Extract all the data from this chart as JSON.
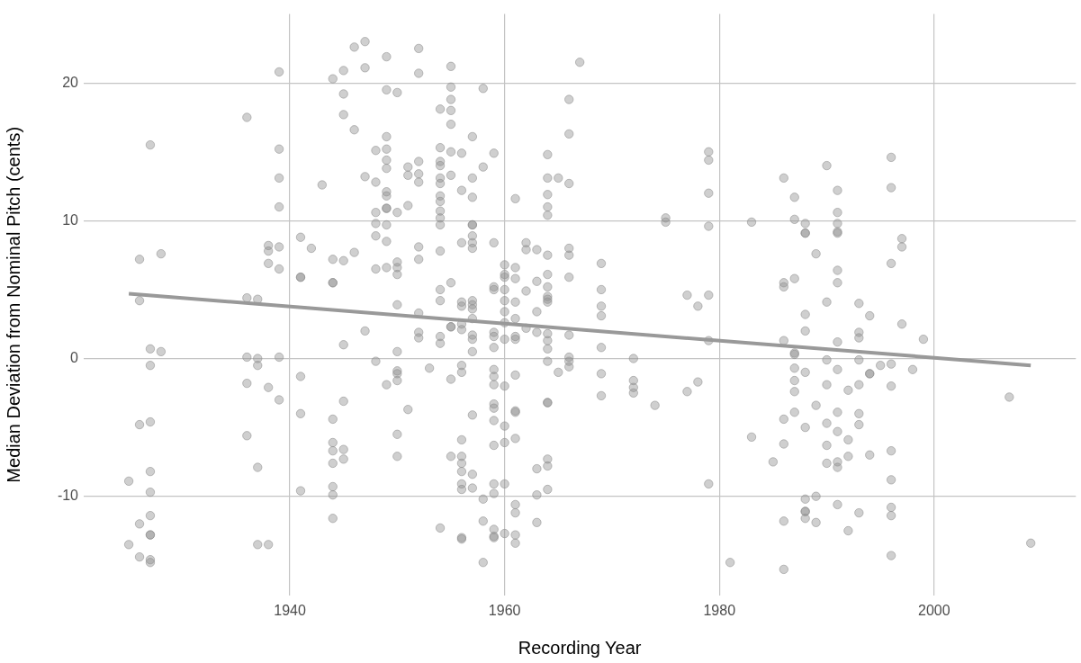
{
  "chart_data": {
    "type": "scatter",
    "xlabel": "Recording Year",
    "ylabel": "Median Deviation from Nominal Pitch (cents)",
    "xlim": [
      1920.8,
      2013.2
    ],
    "xticks": [
      1940,
      1960,
      1980,
      2000
    ],
    "ylim": [
      -17.2,
      25
    ],
    "yticks": [
      -10,
      0,
      10,
      20
    ],
    "grid": true,
    "marker": "circle",
    "series": [
      {
        "color": "#8c8c8c",
        "x": [
          1925,
          1925,
          1926,
          1926,
          1926,
          1926,
          1926,
          1927,
          1927,
          1927,
          1927,
          1927,
          1927,
          1927,
          1927,
          1927,
          1927,
          1927,
          1928,
          1928,
          1936,
          1936,
          1936,
          1936,
          1936,
          1937,
          1937,
          1937,
          1937,
          1937,
          1938,
          1938,
          1938,
          1938,
          1938,
          1939,
          1939,
          1939,
          1939,
          1939,
          1939,
          1939,
          1939,
          1941,
          1941,
          1941,
          1941,
          1941,
          1941,
          1942,
          1943,
          1944,
          1944,
          1944,
          1944,
          1944,
          1944,
          1944,
          1944,
          1944,
          1944,
          1944,
          1945,
          1945,
          1945,
          1945,
          1945,
          1945,
          1945,
          1945,
          1946,
          1946,
          1946,
          1947,
          1947,
          1947,
          1947,
          1948,
          1948,
          1948,
          1948,
          1948,
          1948,
          1948,
          1949,
          1949,
          1949,
          1949,
          1949,
          1949,
          1949,
          1949,
          1949,
          1949,
          1949,
          1949,
          1949,
          1949,
          1950,
          1950,
          1950,
          1950,
          1950,
          1950,
          1950,
          1950,
          1950,
          1950,
          1950,
          1950,
          1951,
          1951,
          1951,
          1951,
          1952,
          1952,
          1952,
          1952,
          1952,
          1952,
          1952,
          1952,
          1952,
          1952,
          1953,
          1954,
          1954,
          1954,
          1954,
          1954,
          1954,
          1954,
          1954,
          1954,
          1954,
          1954,
          1954,
          1954,
          1954,
          1954,
          1954,
          1954,
          1955,
          1955,
          1955,
          1955,
          1955,
          1955,
          1955,
          1955,
          1955,
          1955,
          1955,
          1955,
          1956,
          1956,
          1956,
          1956,
          1956,
          1956,
          1956,
          1956,
          1956,
          1956,
          1956,
          1956,
          1956,
          1956,
          1956,
          1956,
          1956,
          1957,
          1957,
          1957,
          1957,
          1957,
          1957,
          1957,
          1957,
          1957,
          1957,
          1957,
          1957,
          1957,
          1957,
          1957,
          1957,
          1957,
          1957,
          1958,
          1958,
          1958,
          1958,
          1958,
          1959,
          1959,
          1959,
          1959,
          1959,
          1959,
          1959,
          1959,
          1959,
          1959,
          1959,
          1959,
          1959,
          1959,
          1959,
          1959,
          1959,
          1959,
          1959,
          1960,
          1960,
          1960,
          1960,
          1960,
          1960,
          1960,
          1960,
          1960,
          1960,
          1960,
          1960,
          1960,
          1961,
          1961,
          1961,
          1961,
          1961,
          1961,
          1961,
          1961,
          1961,
          1961,
          1961,
          1961,
          1961,
          1961,
          1961,
          1962,
          1962,
          1962,
          1962,
          1963,
          1963,
          1963,
          1963,
          1963,
          1963,
          1963,
          1964,
          1964,
          1964,
          1964,
          1964,
          1964,
          1964,
          1964,
          1964,
          1964,
          1964,
          1964,
          1964,
          1964,
          1964,
          1964,
          1964,
          1964,
          1964,
          1964,
          1965,
          1965,
          1966,
          1966,
          1966,
          1966,
          1966,
          1966,
          1966,
          1966,
          1966,
          1966,
          1967,
          1969,
          1969,
          1969,
          1969,
          1969,
          1969,
          1969,
          1972,
          1972,
          1972,
          1972,
          1974,
          1975,
          1975,
          1977,
          1977,
          1978,
          1978,
          1979,
          1979,
          1979,
          1979,
          1979,
          1979,
          1979,
          1981,
          1983,
          1983,
          1985,
          1986,
          1986,
          1986,
          1986,
          1986,
          1986,
          1986,
          1986,
          1987,
          1987,
          1987,
          1987,
          1987,
          1987,
          1987,
          1987,
          1987,
          1988,
          1988,
          1988,
          1988,
          1988,
          1988,
          1988,
          1988,
          1988,
          1988,
          1988,
          1989,
          1989,
          1989,
          1989,
          1990,
          1990,
          1990,
          1990,
          1990,
          1990,
          1990,
          1991,
          1991,
          1991,
          1991,
          1991,
          1991,
          1991,
          1991,
          1991,
          1991,
          1991,
          1991,
          1991,
          1991,
          1992,
          1992,
          1992,
          1992,
          1993,
          1993,
          1993,
          1993,
          1993,
          1993,
          1993,
          1993,
          1994,
          1994,
          1994,
          1994,
          1995,
          1996,
          1996,
          1996,
          1996,
          1996,
          1996,
          1996,
          1996,
          1996,
          1996,
          1997,
          1997,
          1997,
          1998,
          1999,
          2007,
          2009
        ],
        "values": [
          -8.9,
          -13.5,
          7.2,
          4.2,
          -4.8,
          -12.0,
          -14.4,
          15.5,
          0.7,
          -0.5,
          -4.6,
          -8.2,
          -9.7,
          -11.4,
          -12.8,
          -12.8,
          -14.6,
          -14.8,
          7.6,
          0.5,
          17.5,
          4.4,
          0.1,
          -1.8,
          -5.6,
          4.3,
          0.0,
          -0.5,
          -7.9,
          -13.5,
          8.2,
          7.8,
          6.9,
          -2.1,
          -13.5,
          20.8,
          15.2,
          13.1,
          11.0,
          8.1,
          6.5,
          0.1,
          -3.0,
          8.8,
          5.9,
          5.9,
          -1.3,
          -4.0,
          -9.6,
          8.0,
          12.6,
          20.3,
          7.2,
          5.5,
          5.5,
          -4.4,
          -6.1,
          -6.7,
          -7.6,
          -9.3,
          -9.9,
          -11.6,
          20.9,
          19.2,
          17.7,
          7.1,
          1.0,
          -3.1,
          -6.6,
          -7.3,
          22.6,
          16.6,
          7.7,
          23.0,
          21.1,
          13.2,
          2.0,
          15.1,
          12.8,
          10.6,
          9.8,
          8.9,
          6.5,
          -0.2,
          21.9,
          19.5,
          16.1,
          15.2,
          14.4,
          13.8,
          12.1,
          11.8,
          10.9,
          10.9,
          9.7,
          8.5,
          6.6,
          -1.9,
          19.3,
          10.6,
          7.0,
          6.6,
          6.1,
          3.9,
          0.5,
          -0.9,
          -1.1,
          -1.6,
          -5.5,
          -7.1,
          13.9,
          13.3,
          11.1,
          -3.7,
          22.5,
          20.7,
          14.3,
          13.4,
          12.8,
          8.1,
          7.2,
          3.3,
          1.9,
          1.5,
          -0.7,
          18.1,
          15.3,
          14.3,
          14.0,
          13.1,
          12.7,
          11.8,
          11.4,
          10.7,
          10.2,
          9.7,
          7.8,
          5.0,
          4.2,
          1.6,
          1.1,
          -12.3,
          21.2,
          19.7,
          18.8,
          18.0,
          17.0,
          15.0,
          13.3,
          5.5,
          2.3,
          2.3,
          -1.5,
          -7.1,
          14.9,
          12.2,
          8.4,
          4.1,
          3.8,
          2.5,
          2.1,
          -0.5,
          -1.0,
          -5.9,
          -7.1,
          -7.6,
          -8.2,
          -9.1,
          -9.5,
          -13.0,
          -13.1,
          16.1,
          13.1,
          11.7,
          9.7,
          9.7,
          8.9,
          8.4,
          8.0,
          4.2,
          3.9,
          3.6,
          2.9,
          1.7,
          1.4,
          0.5,
          -4.1,
          -8.4,
          -9.4,
          19.6,
          13.9,
          -10.2,
          -11.8,
          -14.8,
          14.9,
          8.4,
          5.2,
          5.0,
          1.9,
          1.6,
          0.8,
          -0.8,
          -1.3,
          -1.9,
          -3.3,
          -3.6,
          -4.5,
          -6.3,
          -9.1,
          -9.8,
          -12.4,
          -12.9,
          -13.0,
          6.8,
          6.1,
          5.9,
          5.0,
          4.2,
          3.4,
          2.6,
          1.4,
          -2.0,
          -4.9,
          -6.1,
          -9.1,
          -12.7,
          11.6,
          6.6,
          5.8,
          4.1,
          2.9,
          1.6,
          1.4,
          -1.2,
          -3.8,
          -3.9,
          -5.8,
          -10.6,
          -11.2,
          -12.8,
          -13.4,
          8.4,
          7.9,
          4.9,
          2.2,
          7.9,
          5.6,
          3.4,
          1.9,
          -8.0,
          -9.9,
          -11.9,
          14.8,
          13.1,
          11.9,
          11.0,
          10.4,
          7.5,
          6.1,
          5.2,
          4.5,
          4.3,
          4.1,
          1.8,
          1.3,
          0.7,
          -0.2,
          -3.2,
          -3.2,
          -7.3,
          -7.8,
          -9.5,
          13.1,
          -1.0,
          18.8,
          16.3,
          12.7,
          8.0,
          7.5,
          5.9,
          1.7,
          0.1,
          -0.2,
          -0.6,
          21.5,
          6.9,
          5.0,
          3.8,
          3.1,
          0.8,
          -1.1,
          -2.7,
          0.0,
          -1.6,
          -2.1,
          -2.5,
          -3.4,
          10.2,
          9.9,
          4.6,
          -2.4,
          3.8,
          -1.7,
          15.0,
          14.4,
          12.0,
          9.6,
          4.6,
          1.3,
          -9.1,
          -14.8,
          9.9,
          -5.7,
          -7.5,
          13.1,
          5.5,
          5.2,
          1.3,
          -4.4,
          -6.2,
          -11.8,
          -15.3,
          11.7,
          10.1,
          5.8,
          0.4,
          0.3,
          -0.7,
          -1.6,
          -2.4,
          -3.9,
          9.8,
          9.1,
          9.1,
          3.2,
          2.0,
          -1.0,
          -5.0,
          -10.2,
          -11.1,
          -11.1,
          -11.6,
          7.6,
          -3.4,
          -10.0,
          -11.9,
          14.0,
          4.1,
          -0.1,
          -1.9,
          -4.7,
          -6.3,
          -7.6,
          12.2,
          10.6,
          9.8,
          9.2,
          9.1,
          6.4,
          5.5,
          1.2,
          -0.8,
          -3.9,
          -5.3,
          -7.5,
          -7.9,
          -10.6,
          -2.3,
          -5.9,
          -7.1,
          -12.5,
          4.0,
          1.9,
          1.5,
          -0.1,
          -1.9,
          -4.0,
          -4.8,
          -11.2,
          3.1,
          -1.1,
          -1.1,
          -7.0,
          -0.5,
          14.6,
          12.4,
          6.9,
          -0.4,
          -2.0,
          -6.7,
          -8.8,
          -10.8,
          -11.4,
          -14.3,
          8.7,
          8.1,
          2.5,
          -0.8,
          1.4,
          -2.8,
          -13.4
        ]
      },
      {
        "type": "line",
        "color": "#999999",
        "marker": "none",
        "x": [
          1925,
          2009
        ],
        "values": [
          4.7,
          -0.5
        ]
      }
    ]
  }
}
